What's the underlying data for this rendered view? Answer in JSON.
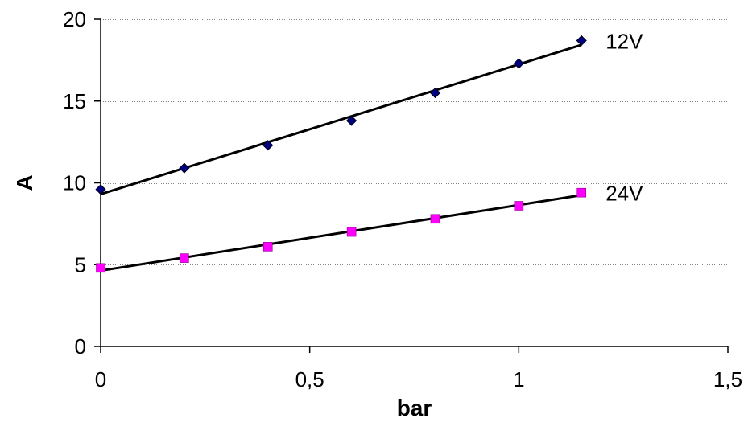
{
  "chart_data": {
    "type": "scatter",
    "title": "",
    "xlabel": "bar",
    "ylabel": "A",
    "xlim": [
      0,
      1.5
    ],
    "ylim": [
      0,
      20
    ],
    "x_ticks": [
      0,
      0.5,
      1,
      1.5
    ],
    "x_tick_labels": [
      "0",
      "0,5",
      "1",
      "1,5"
    ],
    "y_ticks": [
      0,
      5,
      10,
      15,
      20
    ],
    "y_tick_labels": [
      "0",
      "5",
      "10",
      "15",
      "20"
    ],
    "grid": "horizontal-dotted",
    "legend": "none",
    "series": [
      {
        "name": "12V",
        "marker": "diamond",
        "marker_color": "#000080",
        "line_color": "#000000",
        "trendline": "linear",
        "x": [
          0,
          0.2,
          0.4,
          0.6,
          0.8,
          1.0,
          1.15
        ],
        "y": [
          9.6,
          10.9,
          12.3,
          13.8,
          15.5,
          17.3,
          18.7
        ]
      },
      {
        "name": "24V",
        "marker": "square",
        "marker_color": "#ff00ff",
        "line_color": "#000000",
        "trendline": "linear",
        "x": [
          0,
          0.2,
          0.4,
          0.6,
          0.8,
          1.0,
          1.15
        ],
        "y": [
          4.8,
          5.4,
          6.1,
          7.0,
          7.8,
          8.6,
          9.4
        ]
      }
    ]
  }
}
